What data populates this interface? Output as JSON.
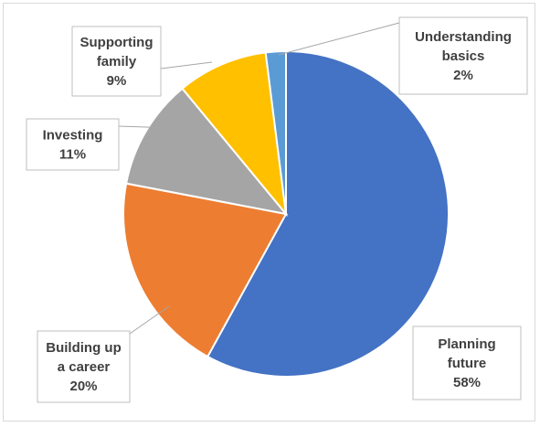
{
  "chart_data": {
    "type": "pie",
    "title": "",
    "show_legend": false,
    "start_angle_deg": 0,
    "direction": "clockwise",
    "slices": [
      {
        "name": "Planning future",
        "value": 58,
        "label_lines": [
          "Planning",
          "future",
          "58%"
        ],
        "color": "#4472C4"
      },
      {
        "name": "Building up a career",
        "value": 20,
        "label_lines": [
          "Building up",
          "a career",
          "20%"
        ],
        "color": "#ED7D31"
      },
      {
        "name": "Investing",
        "value": 11,
        "label_lines": [
          "Investing",
          "11%"
        ],
        "color": "#A5A5A5"
      },
      {
        "name": "Supporting family",
        "value": 9,
        "label_lines": [
          "Supporting",
          "family",
          "9%"
        ],
        "color": "#FFC000"
      },
      {
        "name": "Understanding basics",
        "value": 2,
        "label_lines": [
          "Understanding",
          "basics",
          "2%"
        ],
        "color": "#5B9BD5"
      }
    ]
  }
}
